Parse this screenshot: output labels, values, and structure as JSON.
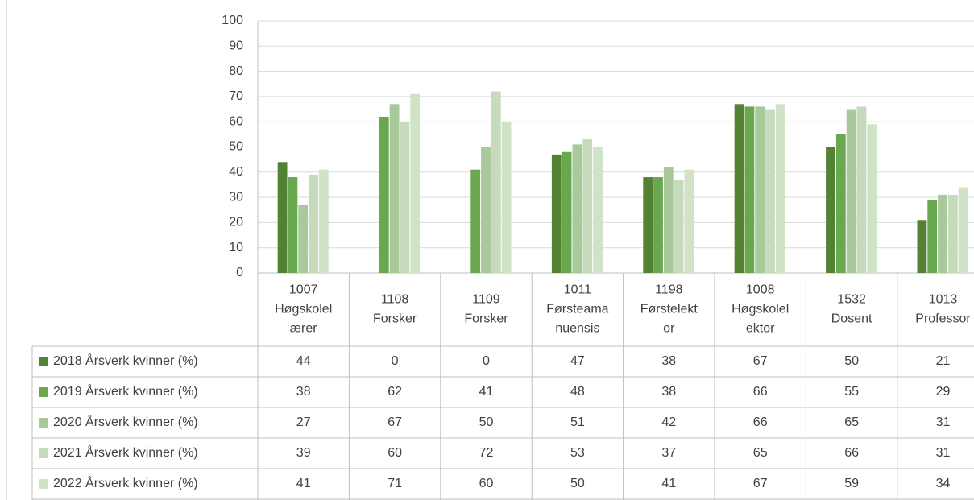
{
  "chart_data": {
    "type": "bar",
    "categories": [
      [
        "1007",
        "Høgskolel",
        "ærer"
      ],
      [
        "1108",
        "Forsker"
      ],
      [
        "1109",
        "Forsker"
      ],
      [
        "1011",
        "Førsteama",
        "nuensis"
      ],
      [
        "1198",
        "Førstelekt",
        "or"
      ],
      [
        "1008",
        "Høgskolel",
        "ektor"
      ],
      [
        "1532",
        "Dosent"
      ],
      [
        "1013",
        "Professor"
      ]
    ],
    "series": [
      {
        "name": "2018 Årsverk kvinner (%)",
        "color": "#548235",
        "values": [
          44,
          0,
          0,
          47,
          38,
          67,
          50,
          21
        ]
      },
      {
        "name": "2019 Årsverk kvinner (%)",
        "color": "#6aa84f",
        "values": [
          38,
          62,
          41,
          48,
          38,
          66,
          55,
          29
        ]
      },
      {
        "name": "2020 Årsverk kvinner (%)",
        "color": "#a9c99b",
        "values": [
          27,
          67,
          50,
          51,
          42,
          66,
          65,
          31
        ]
      },
      {
        "name": "2021 Årsverk kvinner (%)",
        "color": "#c5dbbb",
        "values": [
          39,
          60,
          72,
          53,
          37,
          65,
          66,
          31
        ]
      },
      {
        "name": "2022 Årsverk kvinner (%)",
        "color": "#d0e3c7",
        "values": [
          41,
          71,
          60,
          50,
          41,
          67,
          59,
          34
        ]
      }
    ],
    "ylim": [
      0,
      100
    ],
    "yticks": [
      0,
      10,
      20,
      30,
      40,
      50,
      60,
      70,
      80,
      90,
      100
    ],
    "grid": true
  }
}
